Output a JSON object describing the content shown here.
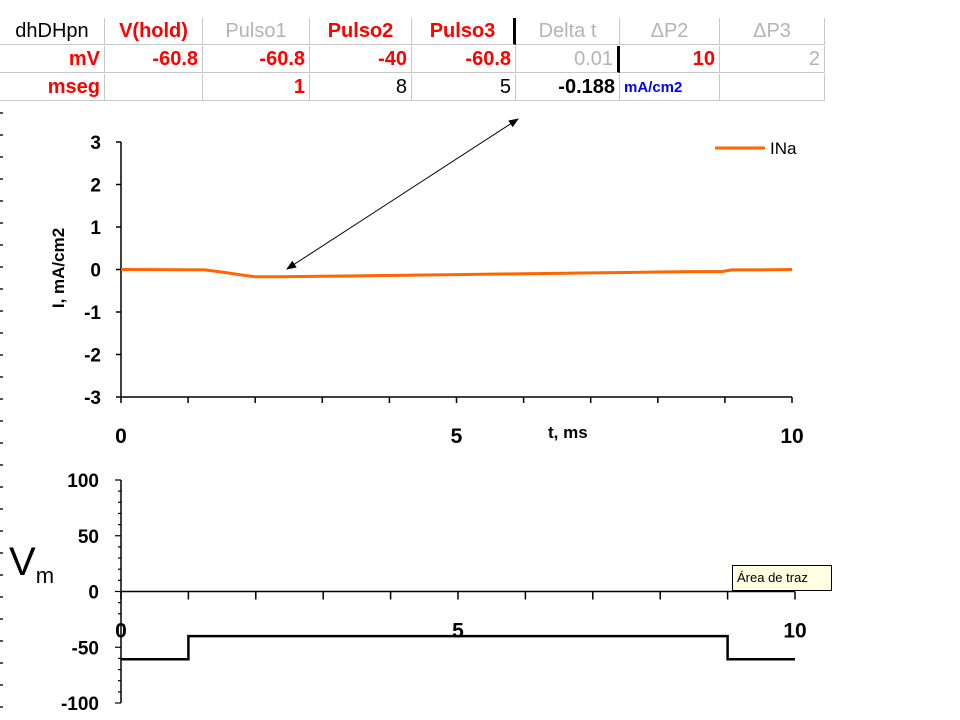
{
  "sheet": {
    "headers": [
      "dhDHpn",
      "V(hold)",
      "Pulso1",
      "Pulso2",
      "Pulso3",
      "Delta t",
      "ΔP2",
      "ΔP3"
    ],
    "row_mv": [
      "mV",
      "-60.8",
      "-60.8",
      "-40",
      "-60.8",
      "0.01",
      "10",
      "2"
    ],
    "row_mseg": [
      "mseg",
      "",
      "1",
      "8",
      "5",
      "-0.188",
      "mA/cm2",
      ""
    ]
  },
  "tooltip": "Área de traz",
  "vm_label": {
    "main": "V",
    "sub": "m"
  },
  "colors": {
    "sodium": "#ff6600",
    "red": "#ff0000",
    "gray": "#b4b4b4",
    "blue": "#0000ff"
  },
  "chart_data": [
    {
      "type": "line",
      "ylabel": "I, mA/cm2",
      "xlabel": "t, ms",
      "xlim": [
        0,
        10
      ],
      "ylim": [
        -3,
        3
      ],
      "yticks": [
        3,
        2,
        1,
        0,
        -1,
        -2,
        -3
      ],
      "xticks": [
        0,
        5,
        10
      ],
      "legend_position": "top-right",
      "series": [
        {
          "name": "INa",
          "x": [
            0,
            1.25,
            1.5,
            1.8,
            2.0,
            2.4,
            3.0,
            3.5,
            4.0,
            4.5,
            5.0,
            5.5,
            6.0,
            6.5,
            7.0,
            7.5,
            8.0,
            8.5,
            8.95,
            9.1,
            9.5,
            10
          ],
          "y": [
            0,
            -0.01,
            -0.06,
            -0.13,
            -0.17,
            -0.17,
            -0.16,
            -0.15,
            -0.14,
            -0.13,
            -0.12,
            -0.11,
            -0.1,
            -0.09,
            -0.08,
            -0.07,
            -0.06,
            -0.05,
            -0.05,
            -0.01,
            -0.01,
            0
          ]
        }
      ]
    },
    {
      "type": "line",
      "ylabel": "",
      "xlabel": "",
      "xlim": [
        0,
        10
      ],
      "ylim": [
        -100,
        100
      ],
      "yticks": [
        100,
        50,
        0,
        -50,
        -100
      ],
      "xticks": [
        0,
        5,
        10
      ],
      "series": [
        {
          "name": "",
          "x": [
            0,
            1,
            1,
            9,
            9,
            10
          ],
          "y": [
            -60.8,
            -60.8,
            -40,
            -40,
            -60.8,
            -60.8
          ]
        }
      ]
    }
  ]
}
